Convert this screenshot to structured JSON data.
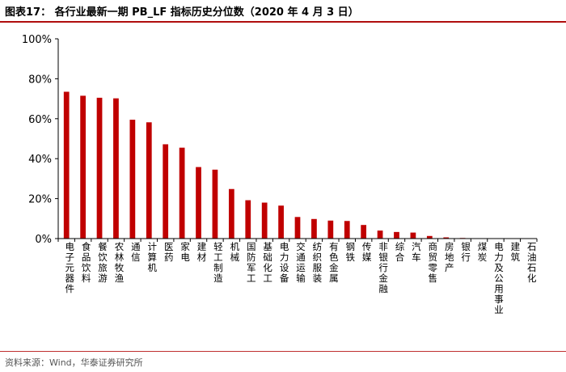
{
  "header": {
    "title": "图表17：  各行业最新一期 PB_LF 指标历史分位数（2020 年 4 月 3 日）"
  },
  "footer": {
    "source": "资料来源：Wind，华泰证券研究所"
  },
  "colors": {
    "bar": "#c00000",
    "rule": "#b00d0d"
  },
  "chart_data": {
    "type": "bar",
    "title": "各行业最新一期 PB_LF 指标历史分位数（2020 年 4 月 3 日）",
    "xlabel": "",
    "ylabel": "",
    "ylim": [
      0,
      100
    ],
    "y_unit": "%",
    "y_ticks": [
      "0%",
      "20%",
      "40%",
      "60%",
      "80%",
      "100%"
    ],
    "grid": false,
    "legend": "none",
    "categories": [
      "电子元器件",
      "食品饮料",
      "餐饮旅游",
      "农林牧渔",
      "通信",
      "计算机",
      "医药",
      "家电",
      "建材",
      "轻工制造",
      "机械",
      "国防军工",
      "基础化工",
      "电力设备",
      "交通运输",
      "纺织服装",
      "有色金属",
      "钢铁",
      "传媒",
      "非银行金融",
      "综合",
      "汽车",
      "商贸零售",
      "房地产",
      "银行",
      "煤炭",
      "电力及公用事业",
      "建筑",
      "石油石化"
    ],
    "values": [
      73.5,
      71.5,
      70.5,
      70.2,
      59.5,
      58.2,
      47.2,
      45.5,
      35.8,
      34.5,
      24.8,
      19.2,
      18.0,
      16.5,
      10.8,
      9.8,
      9.0,
      8.8,
      6.8,
      4.0,
      3.3,
      3.0,
      1.3,
      0.6,
      0.3,
      0.2,
      0.15,
      0.1,
      0.05
    ]
  }
}
